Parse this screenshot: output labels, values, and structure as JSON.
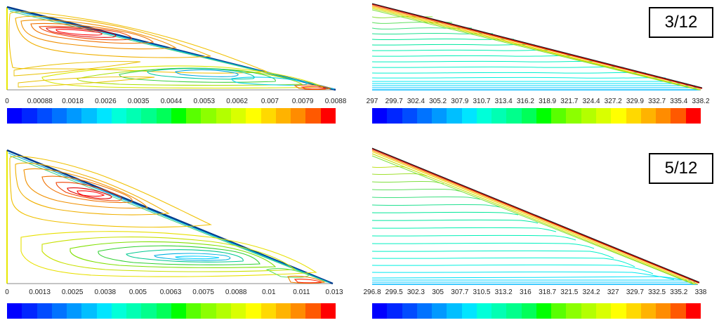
{
  "panels": [
    {
      "id": "streamlines-3-12",
      "kind": "streamfunction",
      "ticks": [
        "0",
        "0.00088",
        "0.0018",
        "0.0026",
        "0.0035",
        "0.0044",
        "0.0053",
        "0.0062",
        "0.007",
        "0.0079",
        "0.0088"
      ],
      "colorbar": [
        "#0000ff",
        "#0026ff",
        "#004cff",
        "#0073ff",
        "#0099ff",
        "#00bfff",
        "#00e5ff",
        "#00ffd9",
        "#00ffb3",
        "#00ff8c",
        "#00ff59",
        "#00ff00",
        "#59ff00",
        "#8cff00",
        "#b3ff00",
        "#d9ff00",
        "#ffff00",
        "#ffd900",
        "#ffb300",
        "#ff8c00",
        "#ff5900",
        "#ff0000"
      ]
    },
    {
      "id": "isotherms-3-12",
      "kind": "temperature",
      "ticks": [
        "297",
        "299.7",
        "302.4",
        "305.2",
        "307.9",
        "310.7",
        "313.4",
        "316.2",
        "318.9",
        "321.7",
        "324.4",
        "327.2",
        "329.9",
        "332.7",
        "335.4",
        "338.2"
      ],
      "colorbar": [
        "#0000ff",
        "#0026ff",
        "#004cff",
        "#0073ff",
        "#0099ff",
        "#00bfff",
        "#00e5ff",
        "#00ffd9",
        "#00ffb3",
        "#00ff8c",
        "#00ff59",
        "#00ff00",
        "#59ff00",
        "#8cff00",
        "#b3ff00",
        "#d9ff00",
        "#ffff00",
        "#ffd900",
        "#ffb300",
        "#ff8c00",
        "#ff5900",
        "#ff0000"
      ]
    },
    {
      "id": "streamlines-5-12",
      "kind": "streamfunction",
      "ticks": [
        "0",
        "0.0013",
        "0.0025",
        "0.0038",
        "0.005",
        "0.0063",
        "0.0075",
        "0.0088",
        "0.01",
        "0.011",
        "0.013"
      ],
      "colorbar": [
        "#0000ff",
        "#0026ff",
        "#004cff",
        "#0073ff",
        "#0099ff",
        "#00bfff",
        "#00e5ff",
        "#00ffd9",
        "#00ffb3",
        "#00ff8c",
        "#00ff59",
        "#00ff00",
        "#59ff00",
        "#8cff00",
        "#b3ff00",
        "#d9ff00",
        "#ffff00",
        "#ffd900",
        "#ffb300",
        "#ff8c00",
        "#ff5900",
        "#ff0000"
      ]
    },
    {
      "id": "isotherms-5-12",
      "kind": "temperature",
      "ticks": [
        "296.8",
        "299.5",
        "302.3",
        "305",
        "307.7",
        "310.5",
        "313.2",
        "316",
        "318.7",
        "321.5",
        "324.2",
        "327",
        "329.7",
        "332.5",
        "335.2",
        "338"
      ],
      "colorbar": [
        "#0000ff",
        "#0026ff",
        "#004cff",
        "#0073ff",
        "#0099ff",
        "#00bfff",
        "#00e5ff",
        "#00ffd9",
        "#00ffb3",
        "#00ff8c",
        "#00ff59",
        "#00ff00",
        "#59ff00",
        "#8cff00",
        "#b3ff00",
        "#d9ff00",
        "#ffff00",
        "#ffd900",
        "#ffb300",
        "#ff8c00",
        "#ff5900",
        "#ff0000"
      ]
    }
  ],
  "labels": {
    "top": "3/12",
    "bottom": "5/12"
  }
}
